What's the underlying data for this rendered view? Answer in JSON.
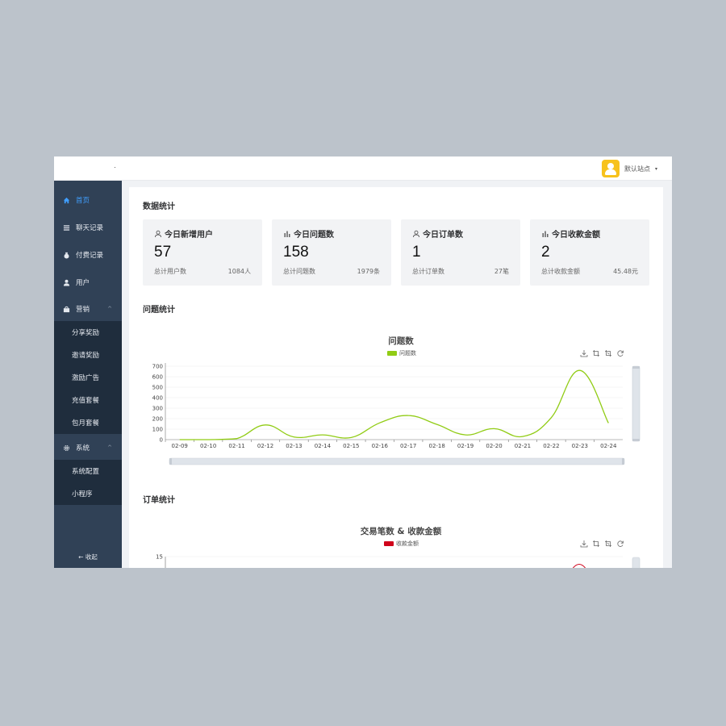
{
  "topbar": {
    "site_name": "默认站点",
    "caret": "▾"
  },
  "sidebar": {
    "items": [
      {
        "label": "首页",
        "icon": "home-icon",
        "active": true
      },
      {
        "label": "聊天记录",
        "icon": "list-icon"
      },
      {
        "label": "付费记录",
        "icon": "money-bag-icon"
      },
      {
        "label": "用户",
        "icon": "user-icon"
      },
      {
        "label": "营销",
        "icon": "shop-bag-icon",
        "arrow": "^"
      }
    ],
    "marketing_sub": [
      "分享奖励",
      "邀请奖励",
      "激励广告",
      "充值套餐",
      "包月套餐"
    ],
    "system": {
      "label": "系统",
      "icon": "gear-icon",
      "arrow": "^"
    },
    "system_sub": [
      "系统配置",
      "小程序"
    ],
    "collapse_label": "← 收起"
  },
  "main": {
    "data_title": "数据统计",
    "cards": [
      {
        "icon": "user-outline-icon",
        "title": "今日新增用户",
        "value": "57",
        "sub_label": "总计用户数",
        "sub_value": "1084人"
      },
      {
        "icon": "bar-chart-icon",
        "title": "今日问题数",
        "value": "158",
        "sub_label": "总计问题数",
        "sub_value": "1979条"
      },
      {
        "icon": "user-outline-icon",
        "title": "今日订单数",
        "value": "1",
        "sub_label": "总计订单数",
        "sub_value": "27笔"
      },
      {
        "icon": "bar-chart-icon",
        "title": "今日收款金额",
        "value": "2",
        "sub_label": "总计收款金额",
        "sub_value": "45.48元"
      }
    ],
    "question_title": "问题统计",
    "order_title": "订单统计"
  },
  "chart_data": [
    {
      "type": "line",
      "title": "问题数",
      "legend": [
        "问题数"
      ],
      "categories": [
        "02-09",
        "02-10",
        "02-11",
        "02-12",
        "02-13",
        "02-14",
        "02-15",
        "02-16",
        "02-17",
        "02-18",
        "02-19",
        "02-20",
        "02-21",
        "02-22",
        "02-23",
        "02-24"
      ],
      "series": [
        {
          "name": "问题数",
          "values": [
            0,
            0,
            10,
            140,
            25,
            45,
            20,
            160,
            230,
            145,
            45,
            105,
            30,
            210,
            660,
            158
          ],
          "color": "#91cc15"
        }
      ],
      "ylim": [
        0,
        700
      ],
      "yticks": [
        "0",
        "100",
        "200",
        "300",
        "400",
        "500",
        "600",
        "700"
      ],
      "smooth": true,
      "grid": true,
      "legend_position": "top-center",
      "datazoom": true
    },
    {
      "type": "line",
      "title": "交易笔数 & 收款金额",
      "legend": [
        "收款金额"
      ],
      "series": [
        {
          "name": "收款金额",
          "color": "#d0021b"
        }
      ],
      "yticks": [
        "15"
      ],
      "legend_position": "top-center"
    }
  ]
}
